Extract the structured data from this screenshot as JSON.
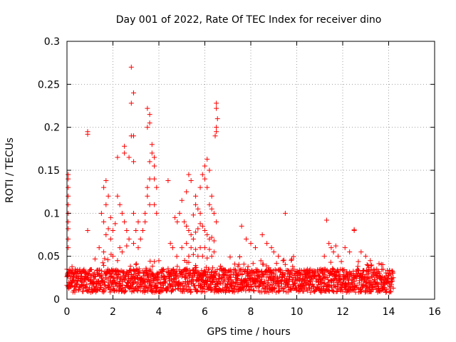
{
  "chart_data": {
    "type": "scatter",
    "title": "Day 001 of 2022, Rate Of TEC Index for receiver dino",
    "xlabel": "GPS time / hours",
    "ylabel": "ROTI / TECUs",
    "xlim": [
      0,
      16
    ],
    "ylim": [
      0,
      0.3
    ],
    "x_ticks": [
      0,
      2,
      4,
      6,
      8,
      10,
      12,
      14,
      16
    ],
    "x_tick_labels": [
      "0",
      "2",
      "4",
      "6",
      "8",
      "10",
      "12",
      "14",
      "16"
    ],
    "y_ticks": [
      0,
      0.05,
      0.1,
      0.15,
      0.2,
      0.25,
      0.3
    ],
    "y_tick_labels": [
      "0",
      "0.05",
      "0.1",
      "0.15",
      "0.2",
      "0.25",
      "0.3"
    ],
    "grid": true,
    "marker": "+",
    "color": "#ff0000",
    "series": [
      {
        "name": "ROTI",
        "points": [
          [
            0.05,
            0.145
          ],
          [
            0.05,
            0.14
          ],
          [
            0.05,
            0.13
          ],
          [
            0.05,
            0.12
          ],
          [
            0.05,
            0.11
          ],
          [
            0.05,
            0.1
          ],
          [
            0.05,
            0.09
          ],
          [
            0.05,
            0.082
          ],
          [
            0.05,
            0.07
          ],
          [
            0.05,
            0.06
          ],
          [
            0.9,
            0.195
          ],
          [
            0.9,
            0.192
          ],
          [
            0.9,
            0.08
          ],
          [
            2.2,
            0.165
          ],
          [
            2.5,
            0.178
          ],
          [
            2.5,
            0.17
          ],
          [
            2.8,
            0.27
          ],
          [
            2.8,
            0.228
          ],
          [
            2.9,
            0.24
          ],
          [
            2.8,
            0.19
          ],
          [
            2.9,
            0.19
          ],
          [
            2.7,
            0.165
          ],
          [
            2.9,
            0.16
          ],
          [
            3.5,
            0.222
          ],
          [
            3.6,
            0.215
          ],
          [
            3.6,
            0.205
          ],
          [
            3.5,
            0.2
          ],
          [
            3.7,
            0.18
          ],
          [
            3.7,
            0.17
          ],
          [
            3.8,
            0.165
          ],
          [
            3.8,
            0.155
          ],
          [
            3.6,
            0.16
          ],
          [
            3.8,
            0.14
          ],
          [
            3.6,
            0.14
          ],
          [
            3.5,
            0.13
          ],
          [
            3.9,
            0.13
          ],
          [
            3.5,
            0.12
          ],
          [
            3.8,
            0.11
          ],
          [
            3.6,
            0.11
          ],
          [
            3.9,
            0.1
          ],
          [
            3.4,
            0.1
          ],
          [
            1.7,
            0.138
          ],
          [
            1.6,
            0.13
          ],
          [
            1.8,
            0.12
          ],
          [
            1.7,
            0.11
          ],
          [
            1.5,
            0.1
          ],
          [
            1.6,
            0.09
          ],
          [
            1.8,
            0.082
          ],
          [
            1.7,
            0.075
          ],
          [
            1.9,
            0.07
          ],
          [
            2.0,
            0.08
          ],
          [
            2.2,
            0.12
          ],
          [
            2.3,
            0.11
          ],
          [
            2.4,
            0.1
          ],
          [
            2.5,
            0.09
          ],
          [
            2.6,
            0.08
          ],
          [
            2.7,
            0.07
          ],
          [
            2.3,
            0.06
          ],
          [
            2.4,
            0.055
          ],
          [
            2.6,
            0.062
          ],
          [
            2.9,
            0.065
          ],
          [
            3.1,
            0.06
          ],
          [
            3.2,
            0.07
          ],
          [
            3.3,
            0.08
          ],
          [
            3.4,
            0.09
          ],
          [
            1.4,
            0.06
          ],
          [
            1.6,
            0.055
          ],
          [
            2.0,
            0.05
          ],
          [
            2.2,
            0.045
          ],
          [
            2.9,
            0.1
          ],
          [
            3.0,
            0.08
          ],
          [
            3.1,
            0.09
          ],
          [
            2.1,
            0.088
          ],
          [
            1.9,
            0.095
          ],
          [
            4.4,
            0.138
          ],
          [
            4.5,
            0.065
          ],
          [
            4.6,
            0.06
          ],
          [
            4.7,
            0.095
          ],
          [
            4.8,
            0.09
          ],
          [
            4.9,
            0.1
          ],
          [
            5.0,
            0.115
          ],
          [
            5.2,
            0.125
          ],
          [
            5.3,
            0.145
          ],
          [
            5.4,
            0.138
          ],
          [
            5.6,
            0.12
          ],
          [
            5.8,
            0.13
          ],
          [
            6.0,
            0.14
          ],
          [
            6.0,
            0.155
          ],
          [
            6.1,
            0.163
          ],
          [
            6.2,
            0.15
          ],
          [
            5.9,
            0.145
          ],
          [
            6.1,
            0.13
          ],
          [
            6.3,
            0.12
          ],
          [
            5.1,
            0.09
          ],
          [
            5.2,
            0.085
          ],
          [
            5.3,
            0.08
          ],
          [
            5.4,
            0.075
          ],
          [
            5.5,
            0.07
          ],
          [
            5.6,
            0.078
          ],
          [
            5.7,
            0.082
          ],
          [
            5.8,
            0.088
          ],
          [
            5.9,
            0.085
          ],
          [
            6.0,
            0.08
          ],
          [
            6.1,
            0.075
          ],
          [
            6.2,
            0.07
          ],
          [
            6.3,
            0.072
          ],
          [
            6.4,
            0.068
          ],
          [
            5.0,
            0.06
          ],
          [
            5.2,
            0.065
          ],
          [
            5.4,
            0.06
          ],
          [
            5.6,
            0.058
          ],
          [
            5.8,
            0.06
          ],
          [
            6.0,
            0.06
          ],
          [
            6.2,
            0.058
          ],
          [
            6.4,
            0.055
          ],
          [
            5.3,
            0.05
          ],
          [
            5.5,
            0.052
          ],
          [
            5.7,
            0.05
          ],
          [
            5.9,
            0.05
          ],
          [
            6.1,
            0.048
          ],
          [
            6.3,
            0.05
          ],
          [
            5.6,
            0.11
          ],
          [
            5.7,
            0.105
          ],
          [
            5.8,
            0.1
          ],
          [
            5.5,
            0.098
          ],
          [
            6.2,
            0.11
          ],
          [
            6.3,
            0.105
          ],
          [
            6.4,
            0.1
          ],
          [
            6.5,
            0.09
          ],
          [
            6.5,
            0.228
          ],
          [
            6.5,
            0.222
          ],
          [
            6.55,
            0.21
          ],
          [
            6.5,
            0.2
          ],
          [
            6.5,
            0.195
          ],
          [
            6.45,
            0.19
          ],
          [
            7.6,
            0.085
          ],
          [
            7.8,
            0.07
          ],
          [
            8.0,
            0.065
          ],
          [
            8.2,
            0.06
          ],
          [
            8.5,
            0.075
          ],
          [
            8.7,
            0.065
          ],
          [
            8.9,
            0.06
          ],
          [
            9.5,
            0.1
          ],
          [
            9.0,
            0.055
          ],
          [
            9.2,
            0.05
          ],
          [
            9.4,
            0.045
          ],
          [
            11.3,
            0.092
          ],
          [
            11.4,
            0.065
          ],
          [
            11.5,
            0.06
          ],
          [
            11.6,
            0.055
          ],
          [
            11.7,
            0.062
          ],
          [
            11.8,
            0.05
          ],
          [
            11.2,
            0.05
          ],
          [
            12.1,
            0.06
          ],
          [
            12.3,
            0.055
          ],
          [
            12.5,
            0.081
          ],
          [
            12.5,
            0.08
          ],
          [
            12.8,
            0.055
          ],
          [
            13.0,
            0.05
          ],
          [
            13.2,
            0.045
          ]
        ],
        "band": {
          "x_range": [
            0.0,
            14.2
          ],
          "y_base_range": [
            0.008,
            0.035
          ],
          "step_hours": 0.02,
          "note": "dense band of low ROTI values across the whole interval"
        }
      }
    ]
  }
}
